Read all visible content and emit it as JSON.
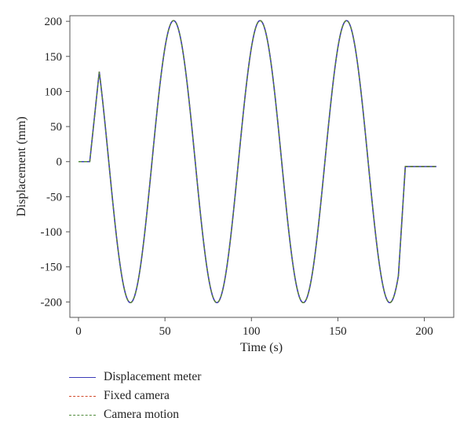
{
  "chart_data": {
    "type": "line",
    "title": "",
    "xlabel": "Time (s)",
    "ylabel": "Displacement (mm)",
    "xlim": [
      -5,
      217
    ],
    "ylim": [
      -222,
      208
    ],
    "xticks": [
      0,
      50,
      100,
      150,
      200
    ],
    "yticks": [
      -200,
      -150,
      -100,
      -50,
      0,
      50,
      100,
      150,
      200
    ],
    "grid": false,
    "legend_position": "bottom-left",
    "series": [
      {
        "name": "Displacement meter",
        "color": "#3b3bb8",
        "dash": "solid",
        "signal": {
          "t_start": 0,
          "t_end": 207,
          "flat_before": 6.5,
          "cycle_start": 6.5,
          "amplitude": 201,
          "period": 50,
          "hold_after": 185,
          "final_value": -7
        }
      },
      {
        "name": "Fixed camera",
        "color": "#d24a2a",
        "dash": "dashed",
        "signal": {
          "t_start": 0,
          "t_end": 207,
          "flat_before": 6.5,
          "cycle_start": 6.5,
          "amplitude": 201,
          "period": 50,
          "hold_after": 185,
          "final_value": -7
        }
      },
      {
        "name": "Camera motion",
        "color": "#4e8a3a",
        "dash": "dashed",
        "signal": {
          "t_start": 0,
          "t_end": 207,
          "flat_before": 6.5,
          "cycle_start": 6.5,
          "amplitude": 201,
          "period": 50,
          "hold_after": 185,
          "final_value": -7
        }
      }
    ]
  },
  "legend": {
    "items": [
      {
        "label": "Displacement meter",
        "color": "#3b3bb8",
        "style": "solid"
      },
      {
        "label": "Fixed camera",
        "color": "#d24a2a",
        "style": "dashed"
      },
      {
        "label": "Camera motion",
        "color": "#4e8a3a",
        "style": "dashed"
      }
    ]
  }
}
